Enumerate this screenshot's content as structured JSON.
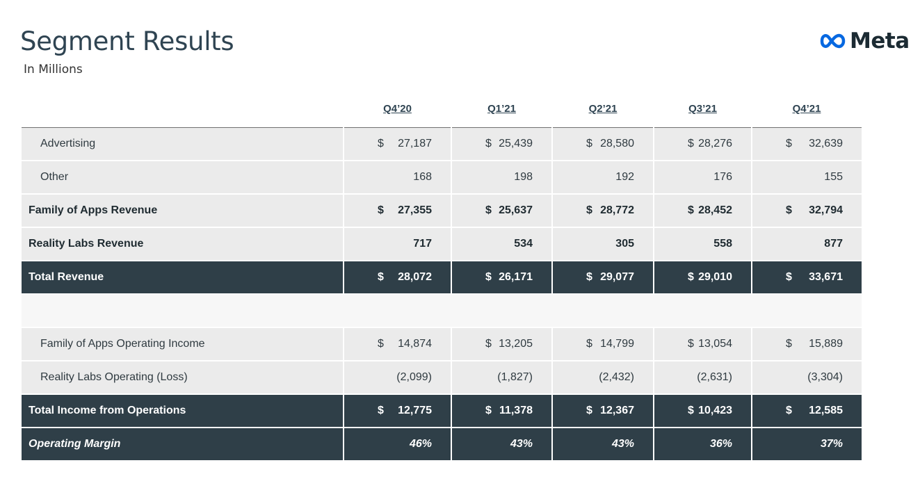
{
  "page": {
    "title": "Segment Results",
    "subtitle": "In Millions",
    "logo_text": "Meta",
    "logo_icon": "meta-infinity-icon",
    "accent_color": "#0668e1",
    "dark_row_color": "#2f3f48"
  },
  "table": {
    "columns": [
      "Q4’20",
      "Q1’21",
      "Q2’21",
      "Q3’21",
      "Q4’21"
    ],
    "rows": {
      "advertising": {
        "label": "Advertising",
        "values": [
          "27,187",
          "25,439",
          "28,580",
          "28,276",
          "32,639"
        ]
      },
      "other": {
        "label": "Other",
        "values": [
          "168",
          "198",
          "192",
          "176",
          "155"
        ]
      },
      "foa_revenue": {
        "label": "Family of Apps Revenue",
        "values": [
          "27,355",
          "25,637",
          "28,772",
          "28,452",
          "32,794"
        ]
      },
      "rl_revenue": {
        "label": "Reality Labs Revenue",
        "values": [
          "717",
          "534",
          "305",
          "558",
          "877"
        ]
      },
      "total_revenue": {
        "label": "Total Revenue",
        "values": [
          "28,072",
          "26,171",
          "29,077",
          "29,010",
          "33,671"
        ]
      },
      "foa_income": {
        "label": "Family of Apps Operating Income",
        "values": [
          "14,874",
          "13,205",
          "14,799",
          "13,054",
          "15,889"
        ]
      },
      "rl_loss": {
        "label": "Reality Labs Operating (Loss)",
        "values": [
          "(2,099)",
          "(1,827)",
          "(2,432)",
          "(2,631)",
          "(3,304)"
        ]
      },
      "total_income": {
        "label": "Total Income from Operations",
        "values": [
          "12,775",
          "11,378",
          "12,367",
          "10,423",
          "12,585"
        ]
      },
      "operating_margin": {
        "label": "Operating Margin",
        "values": [
          "46%",
          "43%",
          "43%",
          "36%",
          "37%"
        ]
      }
    },
    "currency_symbol": "$"
  }
}
